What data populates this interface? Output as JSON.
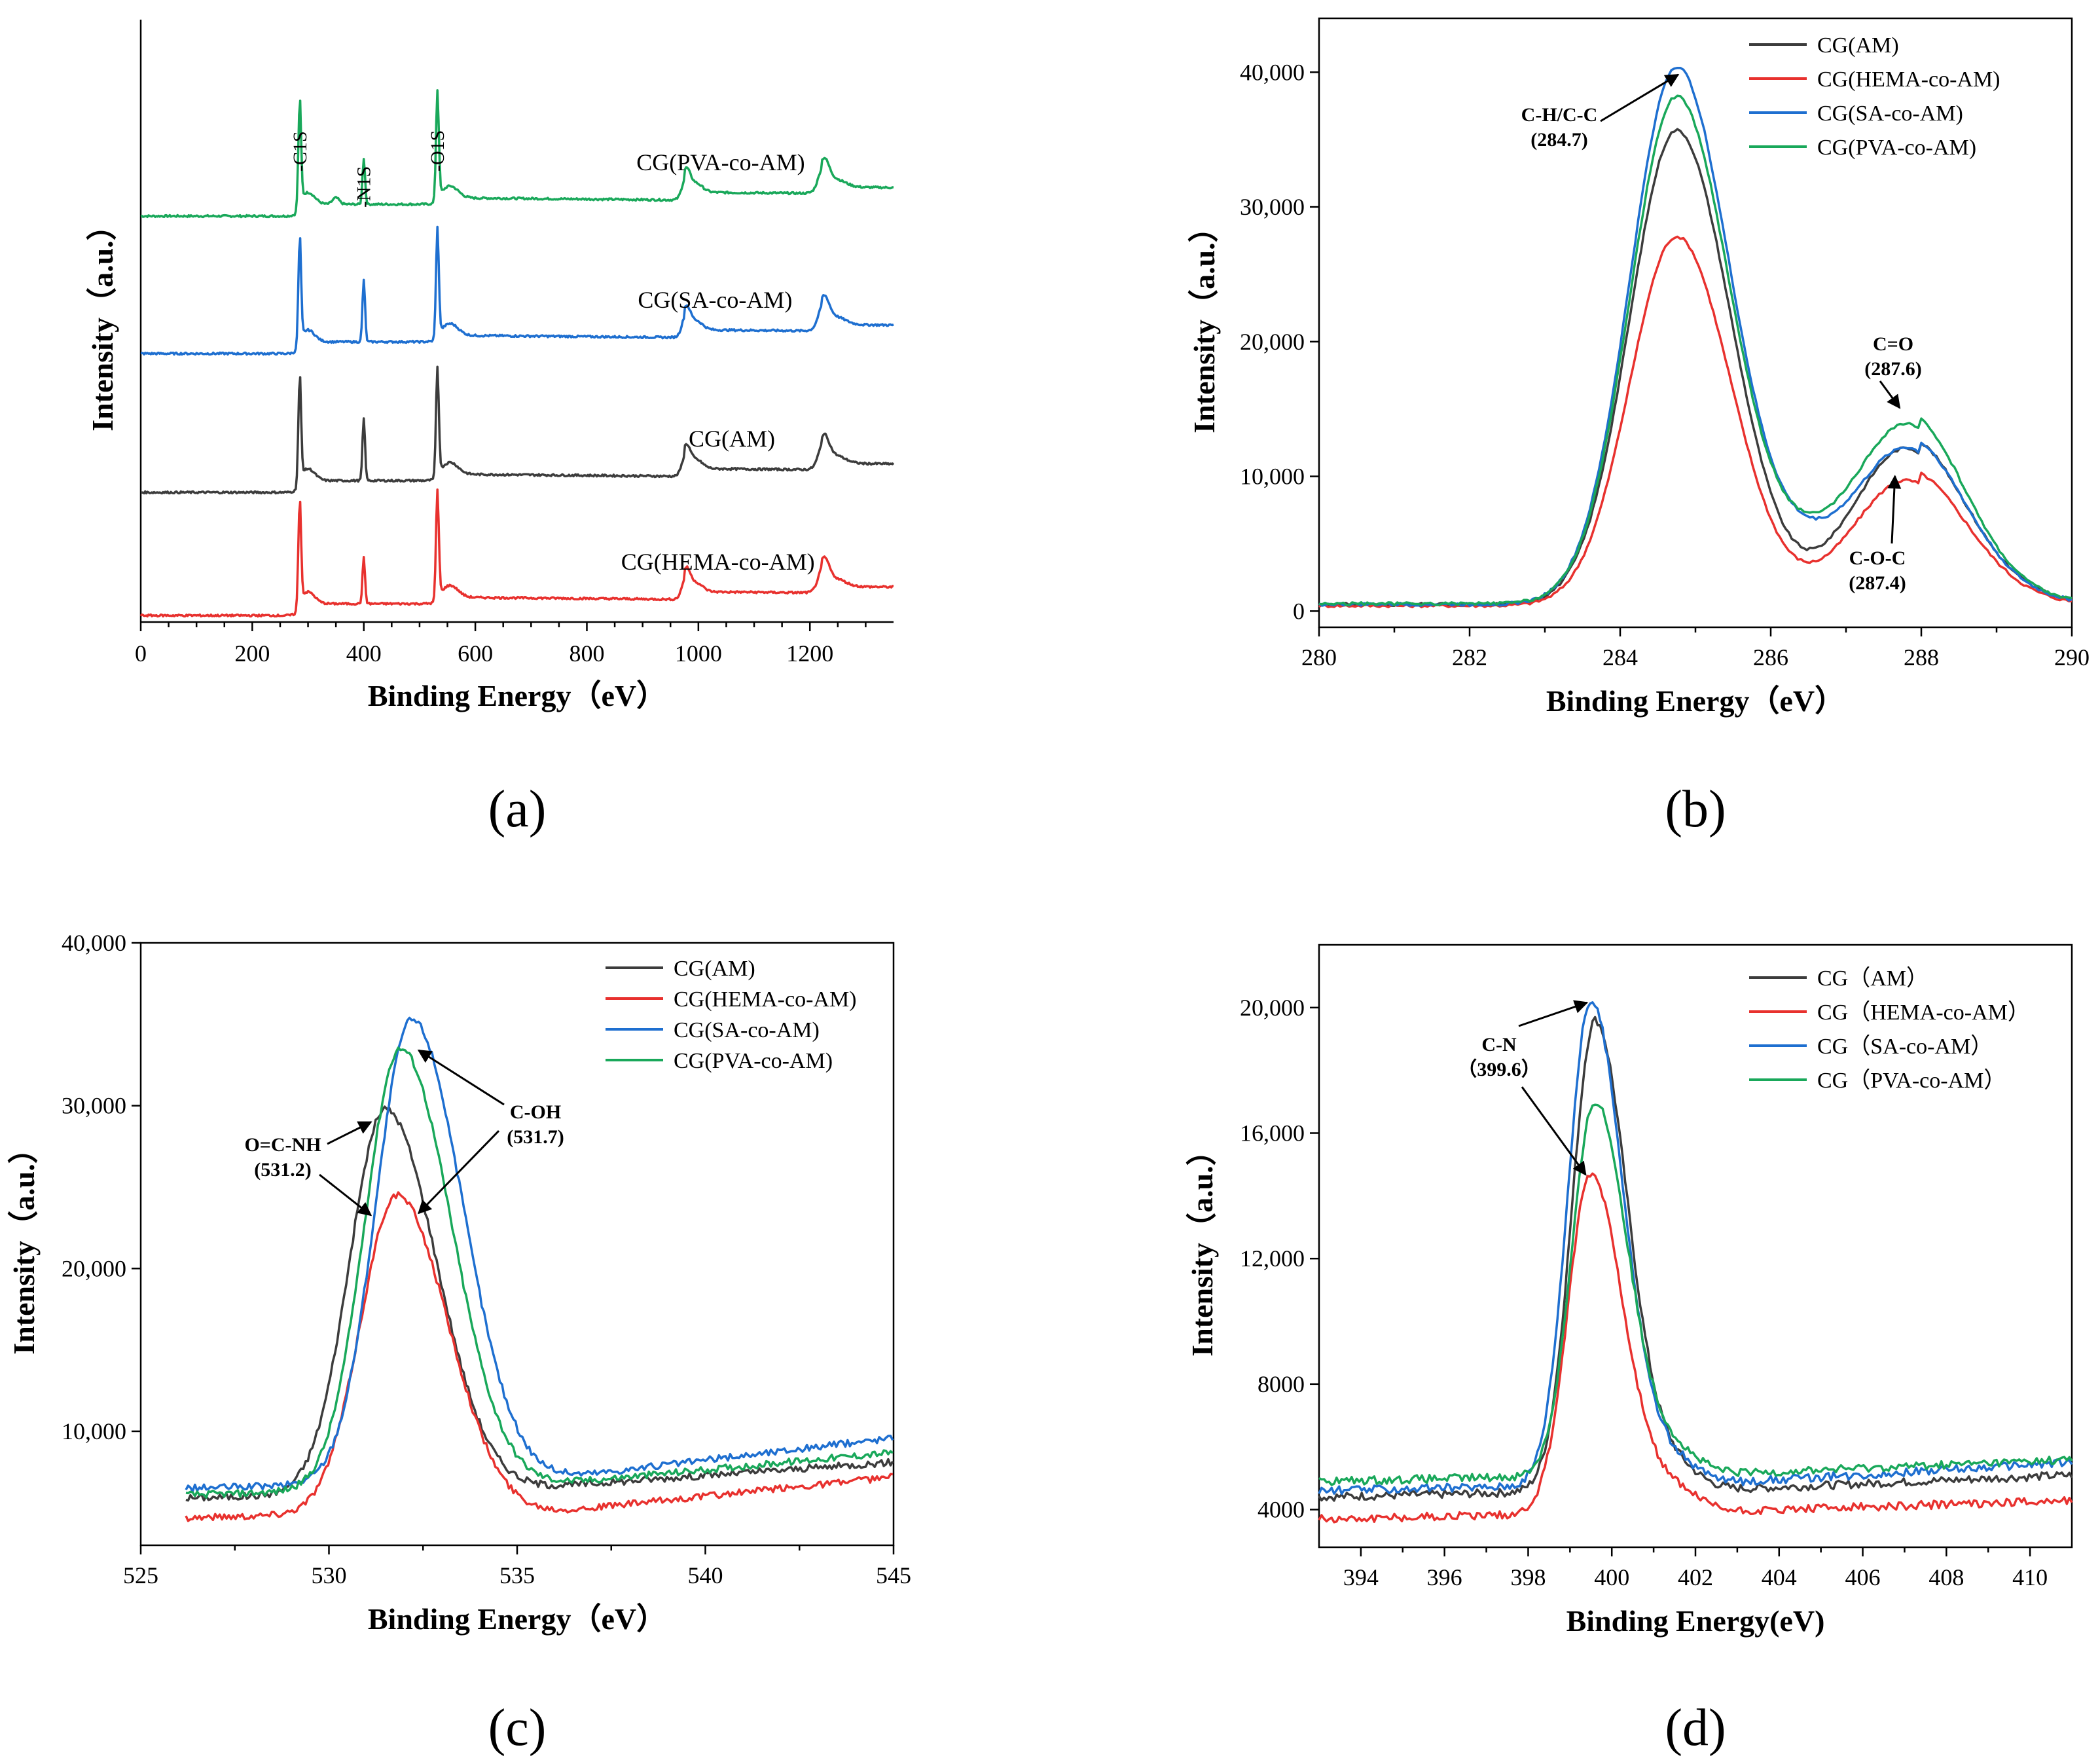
{
  "colors": {
    "AM": "#3c3c3c",
    "HEMA": "#e8312e",
    "SA": "#1e6fd0",
    "PVA": "#19a85a"
  },
  "chart_data": [
    {
      "id": "a",
      "type": "line",
      "panel_label": "(a)",
      "xlabel": "Binding Energy（eV）",
      "ylabel": "Intensity（a.u.）",
      "xlim": [
        0,
        1350
      ],
      "xticks": [
        0,
        200,
        400,
        600,
        800,
        1000,
        1200
      ],
      "xtick_labels": [
        "0",
        "200",
        "400",
        "600",
        "800",
        "1000",
        "1200"
      ],
      "y_ticks_shown": false,
      "peak_labels": [
        {
          "text": "-C1S",
          "x": 285
        },
        {
          "text": "-N1S",
          "x": 400
        },
        {
          "text": "-O1S",
          "x": 532
        }
      ],
      "series": [
        {
          "name": "CG(PVA-co-AM)",
          "color_key": "PVA",
          "baseline": 3.0,
          "label_x": 1040
        },
        {
          "name": "CG(SA-co-AM)",
          "color_key": "SA",
          "baseline": 2.0,
          "label_x": 1030
        },
        {
          "name": "CG(AM)",
          "color_key": "AM",
          "baseline": 1.0,
          "label_x": 1060
        },
        {
          "name": "CG(HEMA-co-AM)",
          "color_key": "HEMA",
          "baseline": 0.0,
          "label_x": 1035
        }
      ]
    },
    {
      "id": "b",
      "type": "line",
      "panel_label": "(b)",
      "xlabel": "Binding Energy（eV）",
      "ylabel": "Intensity（a.u.）",
      "xlim": [
        280,
        290
      ],
      "ylim": [
        -1200,
        44000
      ],
      "xticks": [
        280,
        282,
        284,
        286,
        288,
        290
      ],
      "xtick_labels": [
        "280",
        "282",
        "284",
        "286",
        "288",
        "290"
      ],
      "yticks": [
        0,
        10000,
        20000,
        30000,
        40000
      ],
      "ytick_labels": [
        "0",
        "10,000",
        "20,000",
        "30,000",
        "40,000"
      ],
      "legend": [
        "CG(AM)",
        "CG(HEMA-co-AM)",
        "CG(SA-co-AM)",
        "CG(PVA-co-AM)"
      ],
      "legend_position": "top-right",
      "annotations": [
        {
          "lines": [
            "C-H/C-C",
            "(284.7)"
          ]
        },
        {
          "lines": [
            "C=O",
            "(287.6)"
          ]
        },
        {
          "lines": [
            "C-O-C",
            "(287.4)"
          ]
        }
      ],
      "series": [
        {
          "name": "CG(AM)",
          "color_key": "AM",
          "peak1": 35700,
          "peak2": 12800,
          "baseline": 500
        },
        {
          "name": "CG(HEMA-co-AM)",
          "color_key": "HEMA",
          "peak1": 27800,
          "peak2": 10500,
          "baseline": 400
        },
        {
          "name": "CG(SA-co-AM)",
          "color_key": "SA",
          "peak1": 40400,
          "peak2": 12800,
          "baseline": 500
        },
        {
          "name": "CG(PVA-co-AM)",
          "color_key": "PVA",
          "peak1": 38200,
          "peak2": 14500,
          "baseline": 550
        }
      ]
    },
    {
      "id": "c",
      "type": "line",
      "panel_label": "(c)",
      "xlabel": "Binding Energy（eV）",
      "ylabel": "Intensity（a.u.）",
      "xlim": [
        525,
        545
      ],
      "ylim": [
        3000,
        40000
      ],
      "xticks": [
        525,
        530,
        535,
        540,
        545
      ],
      "xtick_labels": [
        "525",
        "530",
        "535",
        "540",
        "545"
      ],
      "yticks": [
        10000,
        20000,
        30000,
        40000
      ],
      "ytick_labels": [
        "10,000",
        "20,000",
        "30,000",
        "40,000"
      ],
      "legend": [
        "CG(AM)",
        "CG(HEMA-co-AM)",
        "CG(SA-co-AM)",
        "CG(PVA-co-AM)"
      ],
      "legend_position": "top-right",
      "annotations": [
        {
          "lines": [
            "O=C-NH",
            "(531.2)"
          ]
        },
        {
          "lines": [
            "C-OH",
            "(531.7)"
          ]
        }
      ],
      "series": [
        {
          "name": "CG(AM)",
          "color_key": "AM",
          "peak": 29800,
          "center": 531.5
        },
        {
          "name": "CG(HEMA-co-AM)",
          "color_key": "HEMA",
          "peak": 24500,
          "center": 531.8
        },
        {
          "name": "CG(SA-co-AM)",
          "color_key": "SA",
          "peak": 35300,
          "center": 532.2
        },
        {
          "name": "CG(PVA-co-AM)",
          "color_key": "PVA",
          "peak": 33500,
          "center": 531.9
        }
      ]
    },
    {
      "id": "d",
      "type": "line",
      "panel_label": "(d)",
      "xlabel": "Binding Energy(eV)",
      "ylabel": "Intensity（a.u.）",
      "xlim": [
        393,
        411
      ],
      "ylim": [
        2800,
        22000
      ],
      "xticks": [
        394,
        396,
        398,
        400,
        402,
        404,
        406,
        408,
        410
      ],
      "xtick_labels": [
        "394",
        "396",
        "398",
        "400",
        "402",
        "404",
        "406",
        "408",
        "410"
      ],
      "yticks": [
        4000,
        8000,
        12000,
        16000,
        20000
      ],
      "ytick_labels": [
        "4000",
        "8000",
        "12,000",
        "16,000",
        "20,000"
      ],
      "legend": [
        "CG（AM）",
        "CG（HEMA-co-AM）",
        "CG（SA-co-AM）",
        "CG（PVA-co-AM）"
      ],
      "legend_position": "top-right",
      "annotations": [
        {
          "lines": [
            "C-N",
            "（399.6）"
          ]
        }
      ],
      "series": [
        {
          "name": "CG（AM）",
          "color_key": "AM",
          "peak": 19600,
          "center": 399.6
        },
        {
          "name": "CG（HEMA-co-AM）",
          "color_key": "HEMA",
          "peak": 14700,
          "center": 399.5
        },
        {
          "name": "CG（SA-co-AM）",
          "color_key": "SA",
          "peak": 20200,
          "center": 399.5
        },
        {
          "name": "CG（PVA-co-AM）",
          "color_key": "PVA",
          "peak": 17000,
          "center": 399.6
        }
      ]
    }
  ]
}
